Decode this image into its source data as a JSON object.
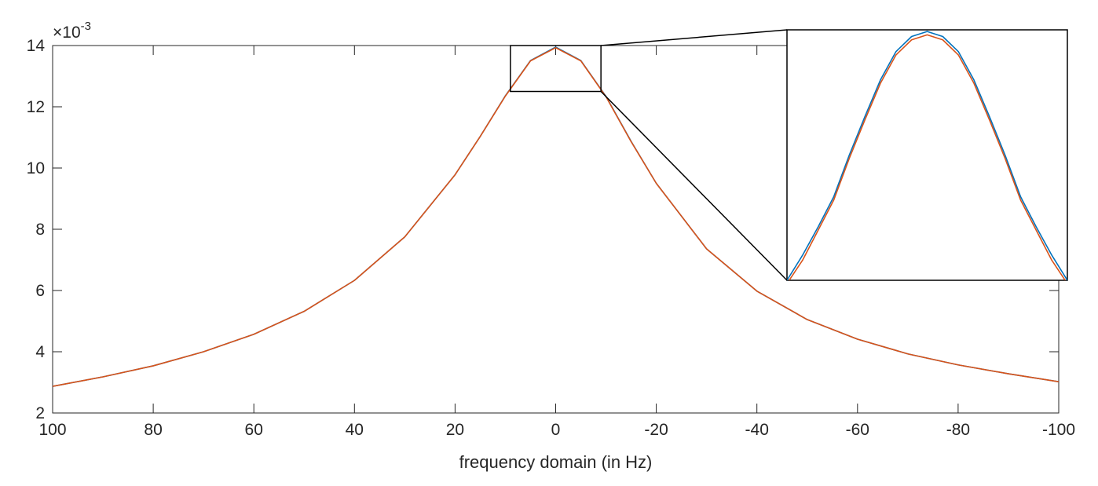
{
  "chart_data": {
    "type": "line",
    "title": "",
    "xlabel": "frequency domain (in Hz)",
    "ylabel": "",
    "x_reversed": true,
    "xlim": [
      -100,
      100
    ],
    "ylim": [
      0.002,
      0.014
    ],
    "xticks": [
      100,
      80,
      60,
      40,
      20,
      0,
      -20,
      -40,
      -60,
      -80,
      -100
    ],
    "xtick_labels": [
      "100",
      "80",
      "60",
      "40",
      "20",
      "0",
      "-20",
      "-40",
      "-60",
      "-80",
      "-100"
    ],
    "yticks": [
      0.002,
      0.004,
      0.006,
      0.008,
      0.01,
      0.012,
      0.014
    ],
    "ytick_labels": [
      "2",
      "4",
      "6",
      "8",
      "10",
      "12",
      "14"
    ],
    "y_exponent_label": "×10",
    "y_exponent_power": "-3",
    "grid": false,
    "legend": "none",
    "series": [
      {
        "color": "#0072BD",
        "x": [
          100,
          90,
          80,
          70,
          60,
          50,
          40,
          30,
          20,
          15,
          10,
          5,
          0,
          -5,
          -10,
          -15,
          -20,
          -30,
          -40,
          -50,
          -60,
          -70,
          -80,
          -90,
          -100
        ],
        "y": [
          0.00287,
          0.00318,
          0.00354,
          0.004,
          0.00457,
          0.00532,
          0.00633,
          0.00775,
          0.00978,
          0.01103,
          0.01236,
          0.01351,
          0.01395,
          0.01351,
          0.01234,
          0.01087,
          0.0095,
          0.00736,
          0.00598,
          0.00505,
          0.00441,
          0.00393,
          0.00357,
          0.00328,
          0.00302
        ]
      },
      {
        "color": "#D95319",
        "x": [
          100,
          90,
          80,
          70,
          60,
          50,
          40,
          30,
          20,
          15,
          10,
          5,
          0,
          -5,
          -10,
          -15,
          -20,
          -30,
          -40,
          -50,
          -60,
          -70,
          -80,
          -90,
          -100
        ],
        "y": [
          0.00287,
          0.00318,
          0.00354,
          0.004,
          0.00457,
          0.00532,
          0.00633,
          0.00775,
          0.00978,
          0.01103,
          0.01235,
          0.0135,
          0.01393,
          0.0135,
          0.01233,
          0.01086,
          0.0095,
          0.00736,
          0.00598,
          0.00505,
          0.00441,
          0.00393,
          0.00357,
          0.00328,
          0.00302
        ]
      }
    ],
    "inset": {
      "xlim": [
        -9,
        9
      ],
      "ylim": [
        0.0125,
        0.014
      ],
      "series": [
        {
          "color": "#0072BD",
          "x": [
            -9,
            -8,
            -7,
            -6,
            -5,
            -4,
            -3,
            -2,
            -1,
            0,
            1,
            2,
            3,
            4,
            5,
            6,
            7,
            8,
            9
          ],
          "y": [
            0.0125,
            0.01265,
            0.01282,
            0.013,
            0.01325,
            0.01348,
            0.0137,
            0.01387,
            0.01396,
            0.01399,
            0.01396,
            0.01387,
            0.0137,
            0.01348,
            0.01325,
            0.013,
            0.01282,
            0.01265,
            0.0125
          ]
        },
        {
          "color": "#D95319",
          "x": [
            -9,
            -8,
            -7,
            -6,
            -5,
            -4,
            -3,
            -2,
            -1,
            0,
            1,
            2,
            3,
            4,
            5,
            6,
            7,
            8,
            9
          ],
          "y": [
            0.01248,
            0.01262,
            0.0128,
            0.01298,
            0.01323,
            0.01346,
            0.01368,
            0.01385,
            0.01394,
            0.01397,
            0.01394,
            0.01385,
            0.01368,
            0.01346,
            0.01323,
            0.01298,
            0.0128,
            0.01262,
            0.01248
          ]
        }
      ]
    }
  }
}
